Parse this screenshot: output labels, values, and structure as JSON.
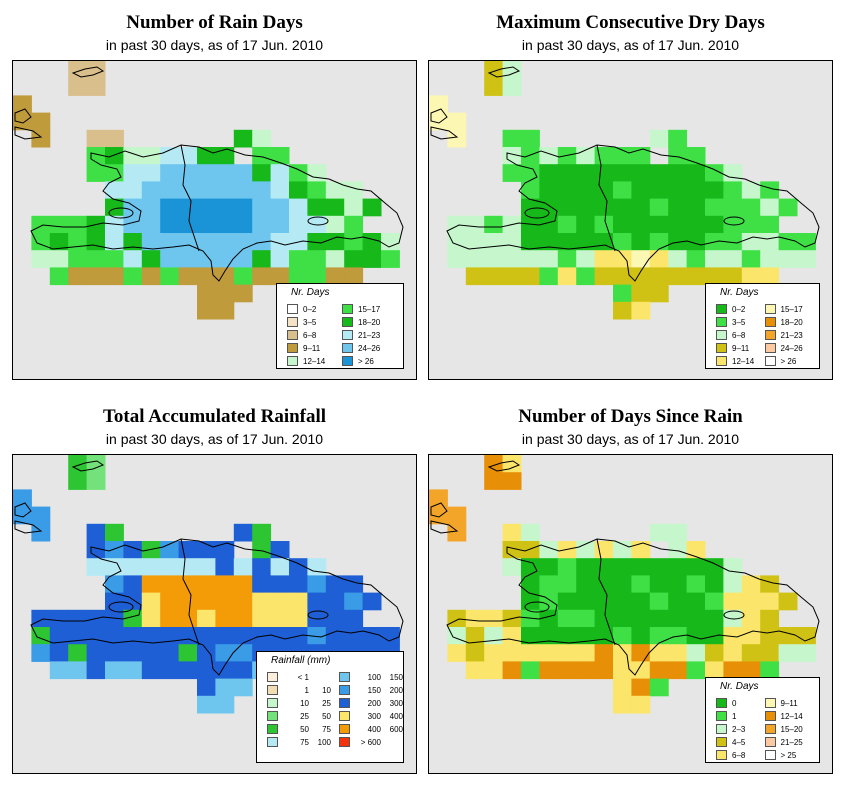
{
  "panels": [
    {
      "id": "rain-days",
      "title": "Number of Rain Days",
      "subtitle": "in past 30 days, as of  17 Jun. 2010",
      "legend": {
        "title": "Nr. Days",
        "items": [
          {
            "label": "0–2",
            "color": "#ffffff"
          },
          {
            "label": "3–5",
            "color": "#f5e3c6"
          },
          {
            "label": "6–8",
            "color": "#d9bf8c"
          },
          {
            "label": "9–11",
            "color": "#bf9b3c"
          },
          {
            "label": "12–14",
            "color": "#c6f7cc"
          },
          {
            "label": "15–17",
            "color": "#3ee046"
          },
          {
            "label": "18–20",
            "color": "#17b81a"
          },
          {
            "label": "21–23",
            "color": "#b5eaf5"
          },
          {
            "label": "24–26",
            "color": "#6ec6ef"
          },
          {
            "label": "> 26",
            "color": "#1a94d6"
          }
        ]
      }
    },
    {
      "id": "max-dry-days",
      "title": "Maximum Consecutive Dry Days",
      "subtitle": "in past 30 days, as of  17 Jun. 2010",
      "legend": {
        "title": "Nr. Days",
        "items": [
          {
            "label": "0–2",
            "color": "#17b81a"
          },
          {
            "label": "3–5",
            "color": "#3ee046"
          },
          {
            "label": "6–8",
            "color": "#c6f7cc"
          },
          {
            "label": "9–11",
            "color": "#cfc214"
          },
          {
            "label": "12–14",
            "color": "#fbe56b"
          },
          {
            "label": "15–17",
            "color": "#fdf7b4"
          },
          {
            "label": "18–20",
            "color": "#e88f08"
          },
          {
            "label": "21–23",
            "color": "#f3a52a"
          },
          {
            "label": "24–26",
            "color": "#fdc9a2"
          },
          {
            "label": "> 26",
            "color": "#ffffff"
          }
        ]
      }
    },
    {
      "id": "total-rainfall",
      "title": "Total Accumulated Rainfall",
      "subtitle": "in past 30 days, as of  17 Jun. 2010",
      "legend": {
        "title": "Rainfall (mm)",
        "items": [
          {
            "lo": "< 1",
            "hi": "",
            "color": "#fbeedd"
          },
          {
            "lo": "1",
            "hi": "10",
            "color": "#f3ddb4"
          },
          {
            "lo": "10",
            "hi": "25",
            "color": "#c6f7cc"
          },
          {
            "lo": "25",
            "hi": "50",
            "color": "#74e27a"
          },
          {
            "lo": "50",
            "hi": "75",
            "color": "#2ec533"
          },
          {
            "lo": "75",
            "hi": "100",
            "color": "#b5eaf5"
          },
          {
            "lo": "100",
            "hi": "150",
            "color": "#6ec6ef"
          },
          {
            "lo": "150",
            "hi": "200",
            "color": "#3a9be6"
          },
          {
            "lo": "200",
            "hi": "300",
            "color": "#1f5fd6"
          },
          {
            "lo": "300",
            "hi": "400",
            "color": "#fbe56b"
          },
          {
            "lo": "400",
            "hi": "600",
            "color": "#f39c08"
          },
          {
            "lo": "> 600",
            "hi": "",
            "color": "#f5320a"
          }
        ]
      }
    },
    {
      "id": "days-since-rain",
      "title": "Number of Days Since Rain",
      "subtitle": "in past 30 days, as of  17 Jun. 2010",
      "legend": {
        "title": "Nr. Days",
        "items": [
          {
            "label": "0",
            "color": "#17b81a"
          },
          {
            "label": "1",
            "color": "#3ee046"
          },
          {
            "label": "2–3",
            "color": "#c6f7cc"
          },
          {
            "label": "4–5",
            "color": "#cfc214"
          },
          {
            "label": "6–8",
            "color": "#fbe56b"
          },
          {
            "label": "9–11",
            "color": "#fdf7b4"
          },
          {
            "label": "12–14",
            "color": "#e88f08"
          },
          {
            "label": "15–20",
            "color": "#f3a52a"
          },
          {
            "label": "21–25",
            "color": "#fdc9a2"
          },
          {
            "label": "> 25",
            "color": "#ffffff"
          }
        ]
      }
    }
  ]
}
